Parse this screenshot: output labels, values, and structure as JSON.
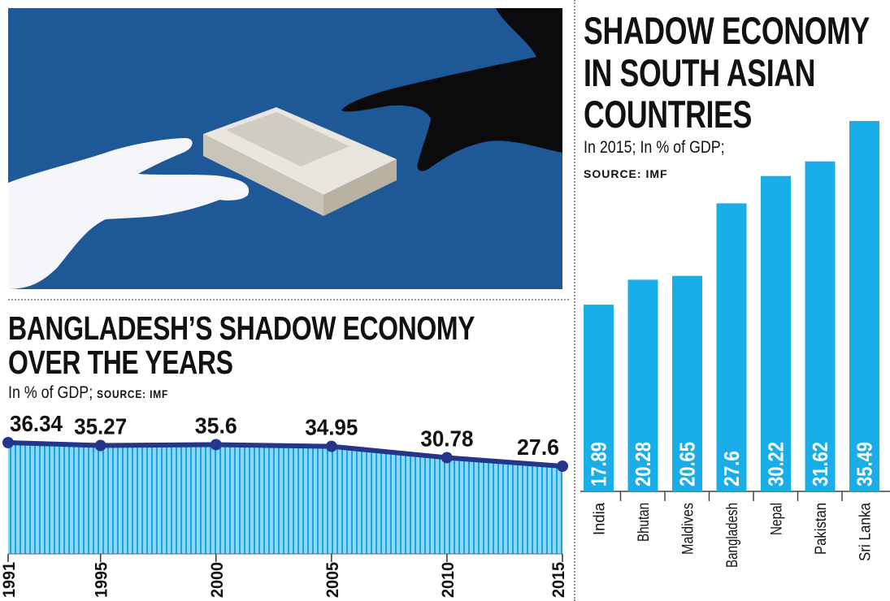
{
  "colors": {
    "photo_bg": "#1f5896",
    "bar": "#19aee8",
    "line": "#24358c",
    "stripe_light": "#8ad8f5",
    "stripe_dark": "#1aa3de",
    "text": "#111111",
    "bar_label": "#ffffff"
  },
  "bangladesh": {
    "title_line1": "BANGLADESH’S SHADOW ECONOMY",
    "title_line2": "OVER THE YEARS",
    "subtitle": "In % of GDP;",
    "source": "SOURCE: IMF"
  },
  "south_asia": {
    "title_line1": "SHADOW ECONOMY",
    "title_line2": "IN SOUTH ASIAN",
    "title_line3": "COUNTRIES",
    "subtitle": "In 2015; In % of GDP;",
    "source": "SOURCE: IMF"
  },
  "chart_data": [
    {
      "type": "area",
      "title": "BANGLADESH’S SHADOW ECONOMY OVER THE YEARS",
      "ylabel": "In % of GDP",
      "x": [
        "1991",
        "1995",
        "2000",
        "2005",
        "2010",
        "2015"
      ],
      "x_numeric": [
        1991,
        1995,
        2000,
        2005,
        2010,
        2015
      ],
      "values": [
        36.34,
        35.27,
        35.6,
        34.95,
        30.78,
        27.6
      ],
      "labels": [
        "36.34",
        "35.27",
        "35.6",
        "34.95",
        "30.78",
        "27.6"
      ],
      "ylim": [
        0,
        38
      ]
    },
    {
      "type": "bar",
      "title": "SHADOW ECONOMY IN SOUTH ASIAN COUNTRIES",
      "ylabel": "In 2015; In % of GDP",
      "categories": [
        "India",
        "Bhutan",
        "Maldives",
        "Bangladesh",
        "Nepal",
        "Pakistan",
        "Sri Lanka"
      ],
      "values": [
        17.89,
        20.28,
        20.65,
        27.6,
        30.22,
        31.62,
        35.49
      ],
      "labels": [
        "17.89",
        "20.28",
        "20.65",
        "27.6",
        "30.22",
        "31.62",
        "35.49"
      ],
      "ylim": [
        0,
        35.49
      ]
    }
  ]
}
